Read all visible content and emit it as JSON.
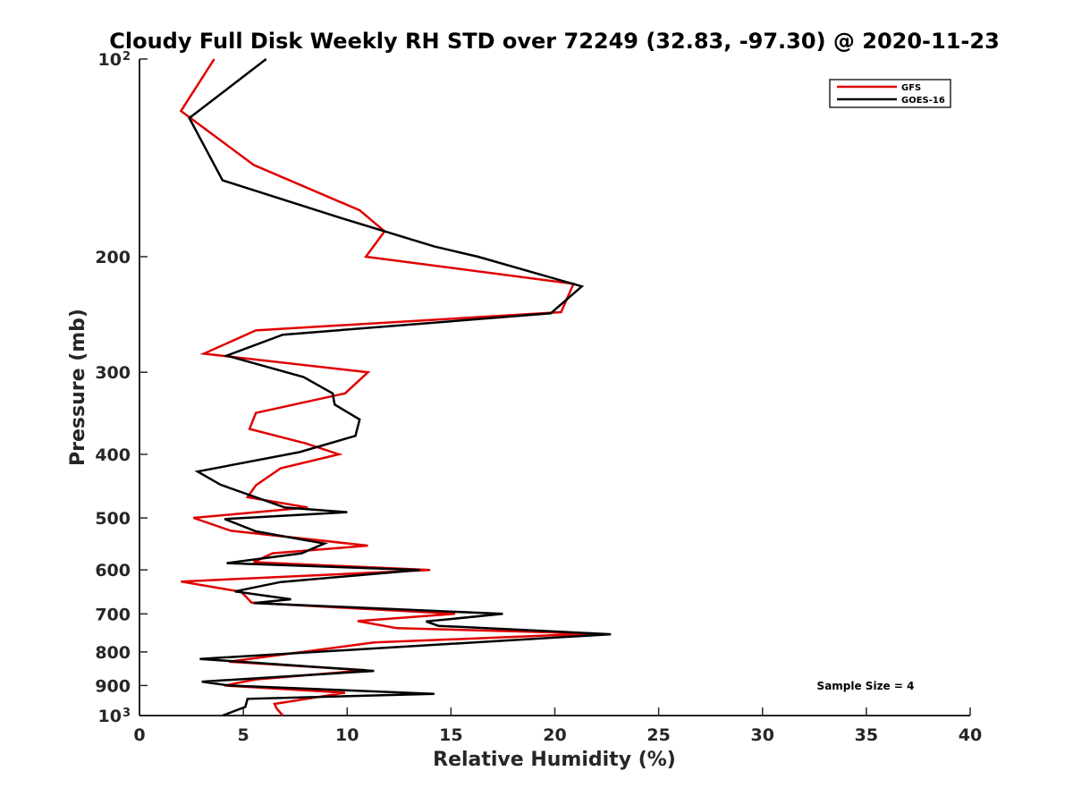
{
  "chart_data": {
    "type": "line",
    "title": "Cloudy Full Disk Weekly RH STD over 72249 (32.83, -97.30) @ 2020-11-23",
    "xlabel": "Relative Humidity (%)",
    "ylabel": "Pressure (mb)",
    "xlim": [
      0,
      40
    ],
    "ylim": [
      100,
      1000
    ],
    "yscale": "log",
    "y_reversed": true,
    "grid": false,
    "legend_position": "top-right",
    "x_ticks": [
      "0",
      "5",
      "10",
      "15",
      "20",
      "25",
      "30",
      "35",
      "40"
    ],
    "x_tick_values": [
      0,
      5,
      10,
      15,
      20,
      25,
      30,
      35,
      40
    ],
    "y_ticks": [
      {
        "value": 100,
        "base": "10",
        "exp": "2"
      },
      {
        "value": 200,
        "label": "200"
      },
      {
        "value": 300,
        "label": "300"
      },
      {
        "value": 400,
        "label": "400"
      },
      {
        "value": 500,
        "label": "500"
      },
      {
        "value": 600,
        "label": "600"
      },
      {
        "value": 700,
        "label": "700"
      },
      {
        "value": 800,
        "label": "800"
      },
      {
        "value": 900,
        "label": "900"
      },
      {
        "value": 1000,
        "base": "10",
        "exp": "3"
      }
    ],
    "annotation": "Sample Size = 4",
    "series": [
      {
        "name": "GFS",
        "color": "#e00000",
        "points": [
          [
            3.6,
            100
          ],
          [
            2.0,
            120
          ],
          [
            5.5,
            145
          ],
          [
            10.6,
            170
          ],
          [
            11.8,
            183
          ],
          [
            10.9,
            200
          ],
          [
            20.9,
            220
          ],
          [
            20.3,
            243
          ],
          [
            5.6,
            259
          ],
          [
            3.1,
            281
          ],
          [
            11.0,
            300
          ],
          [
            9.9,
            323
          ],
          [
            5.6,
            346
          ],
          [
            5.3,
            366
          ],
          [
            8.0,
            385
          ],
          [
            9.6,
            400
          ],
          [
            6.8,
            420
          ],
          [
            5.6,
            446
          ],
          [
            5.2,
            465
          ],
          [
            8.1,
            482
          ],
          [
            2.6,
            500
          ],
          [
            4.4,
            523
          ],
          [
            11.0,
            551
          ],
          [
            6.4,
            566
          ],
          [
            5.5,
            584
          ],
          [
            14.0,
            600
          ],
          [
            2.0,
            625
          ],
          [
            4.9,
            648
          ],
          [
            5.4,
            673
          ],
          [
            15.2,
            700
          ],
          [
            10.5,
            718
          ],
          [
            12.4,
            736
          ],
          [
            22.0,
            750
          ],
          [
            11.3,
            774
          ],
          [
            4.3,
            828
          ],
          [
            10.9,
            853
          ],
          [
            5.6,
            881
          ],
          [
            4.1,
            900
          ],
          [
            9.9,
            923
          ],
          [
            6.5,
            960
          ],
          [
            6.6,
            975
          ],
          [
            6.9,
            1000
          ]
        ]
      },
      {
        "name": "GOES-16",
        "color": "#000000",
        "points": [
          [
            6.1,
            100
          ],
          [
            2.4,
            123
          ],
          [
            4.0,
            153
          ],
          [
            9.8,
            175
          ],
          [
            14.2,
            193
          ],
          [
            16.3,
            200
          ],
          [
            21.3,
            222
          ],
          [
            19.8,
            244
          ],
          [
            6.9,
            263
          ],
          [
            4.2,
            283
          ],
          [
            7.9,
            305
          ],
          [
            9.3,
            323
          ],
          [
            9.4,
            336
          ],
          [
            10.6,
            354
          ],
          [
            10.4,
            375
          ],
          [
            7.7,
            397
          ],
          [
            2.8,
            425
          ],
          [
            3.9,
            445
          ],
          [
            7.0,
            482
          ],
          [
            10.0,
            490
          ],
          [
            4.1,
            502
          ],
          [
            5.6,
            524
          ],
          [
            8.9,
            547
          ],
          [
            7.8,
            566
          ],
          [
            4.2,
            586
          ],
          [
            13.5,
            600
          ],
          [
            6.8,
            626
          ],
          [
            4.6,
            647
          ],
          [
            7.3,
            665
          ],
          [
            5.5,
            674
          ],
          [
            17.5,
            700
          ],
          [
            13.8,
            719
          ],
          [
            14.4,
            730
          ],
          [
            22.7,
            752
          ],
          [
            2.9,
            820
          ],
          [
            11.3,
            855
          ],
          [
            3.0,
            888
          ],
          [
            4.3,
            900
          ],
          [
            14.2,
            927
          ],
          [
            5.2,
            943
          ],
          [
            5.1,
            970
          ],
          [
            4.0,
            1000
          ]
        ]
      }
    ]
  }
}
